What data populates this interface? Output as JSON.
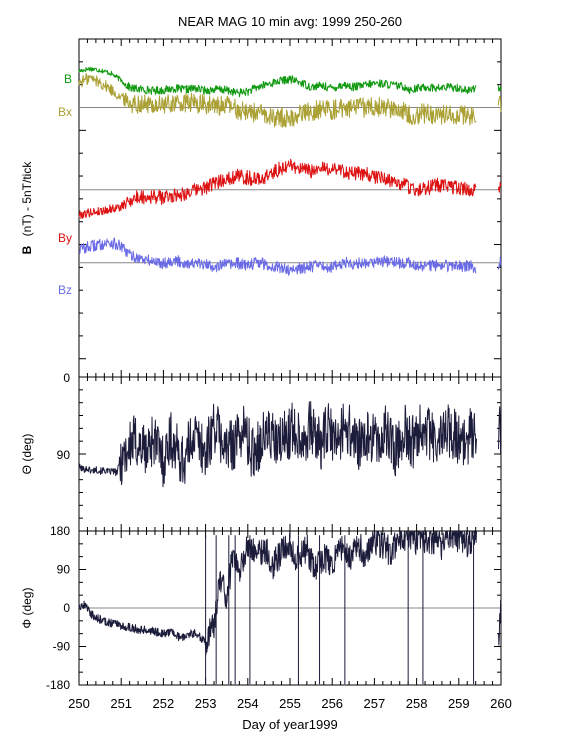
{
  "title": "NEAR MAG 10 min avg: 1999 250-260",
  "xlabel": "Day of year1999",
  "colors": {
    "B": "#119911",
    "Bx": "#aaa033",
    "By": "#dd1111",
    "Bz": "#6a6ae6",
    "theta": "#1b1b3a",
    "phi": "#1b1b3a",
    "zero_line": "#888888"
  },
  "chart_data": [
    {
      "type": "line",
      "panel": "magnetic-field",
      "ylabel_bold": "B",
      "ylabel_rest": "(nT) - 5nT/tick",
      "x_ticks": [
        "250",
        "251",
        "252",
        "253",
        "254",
        "255",
        "256",
        "257",
        "258",
        "259",
        "260"
      ],
      "xlim": [
        250,
        260
      ],
      "ylim": [
        -4,
        70
      ],
      "y_ticks": [
        "0"
      ],
      "series_note": "each trace drawn offset; offsets are the grey baselines",
      "series": [
        {
          "name": "B",
          "label": "B",
          "color_key": "B",
          "baseline": 55,
          "x": [
            250.0,
            250.25,
            250.5,
            250.75,
            251.0,
            251.1,
            251.25,
            251.5,
            251.75,
            252.0,
            252.25,
            252.5,
            252.75,
            253.0,
            253.25,
            253.5,
            253.75,
            254.0,
            254.25,
            254.5,
            254.75,
            255.0,
            255.25,
            255.5,
            255.75,
            256.0,
            256.25,
            256.5,
            256.75,
            257.0,
            257.25,
            257.5,
            257.75,
            257.85,
            258.0,
            258.25,
            258.5,
            258.75,
            259.0,
            259.25,
            259.4,
            259.95,
            260.0
          ],
          "y": [
            63,
            63.5,
            63.2,
            62.5,
            61,
            60,
            59.2,
            59,
            58.7,
            58.8,
            59.2,
            58.9,
            59.2,
            58.7,
            59,
            58.8,
            58.2,
            58.5,
            59.5,
            60.2,
            60.8,
            61.2,
            60.5,
            59.5,
            59.8,
            59.2,
            60,
            59.5,
            59.8,
            60.3,
            60.2,
            59.8,
            59.5,
            58.8,
            59.2,
            59.5,
            59.2,
            59.5,
            59.3,
            58.6,
            59.5,
            59.5,
            58.8
          ]
        },
        {
          "name": "Bx",
          "label": "Bx",
          "color_key": "Bx",
          "baseline": 55,
          "x": [
            250.0,
            250.25,
            250.5,
            250.75,
            251.0,
            251.1,
            251.25,
            251.5,
            251.75,
            252.0,
            252.25,
            252.5,
            252.75,
            253.0,
            253.25,
            253.5,
            253.75,
            254.0,
            254.25,
            254.5,
            254.75,
            255.0,
            255.25,
            255.5,
            255.75,
            256.0,
            256.25,
            256.5,
            256.75,
            257.0,
            257.25,
            257.5,
            257.75,
            257.85,
            258.0,
            258.25,
            258.5,
            258.75,
            259.0,
            259.25,
            259.4,
            259.95,
            260.0
          ],
          "y": [
            60.5,
            61.5,
            60.5,
            59,
            57.2,
            56.5,
            56,
            55.8,
            55.5,
            55.5,
            56,
            55.8,
            56,
            55.5,
            55.3,
            55.6,
            54.5,
            54.2,
            53.8,
            52.8,
            53,
            52.5,
            53.8,
            54.2,
            54.8,
            54.5,
            55,
            54.8,
            55,
            55.3,
            55,
            54.8,
            54.2,
            53.4,
            53.5,
            53.8,
            53.3,
            53.7,
            53.5,
            53.2,
            53.5,
            55.5,
            56
          ]
        },
        {
          "name": "By",
          "label": "By",
          "color_key": "By",
          "baseline": 37,
          "x": [
            250.0,
            250.25,
            250.5,
            250.75,
            251.0,
            251.1,
            251.25,
            251.5,
            251.75,
            252.0,
            252.25,
            252.5,
            252.75,
            253.0,
            253.25,
            253.5,
            253.75,
            254.0,
            254.25,
            254.5,
            254.75,
            255.0,
            255.25,
            255.5,
            255.75,
            256.0,
            256.25,
            256.5,
            256.75,
            257.0,
            257.25,
            257.5,
            257.75,
            257.85,
            258.0,
            258.25,
            258.5,
            258.75,
            259.0,
            259.25,
            259.4,
            259.95,
            260.0
          ],
          "y": [
            31.5,
            32,
            32.3,
            32.8,
            33.2,
            34,
            35,
            35.5,
            35.5,
            35.3,
            35.8,
            36.2,
            36.8,
            37.5,
            38.5,
            39.5,
            40,
            39.6,
            39.2,
            40.2,
            41.5,
            42.5,
            41.5,
            41,
            41.5,
            41.8,
            41.2,
            40.5,
            40.5,
            39.8,
            39.5,
            38.5,
            38,
            37.5,
            37,
            37.3,
            38,
            37.8,
            37.2,
            37,
            37.2,
            37.5,
            37.2
          ]
        },
        {
          "name": "Bz",
          "label": "Bz",
          "color_key": "Bz",
          "baseline": 21,
          "x": [
            250.0,
            250.25,
            250.5,
            250.75,
            251.0,
            251.1,
            251.25,
            251.5,
            251.75,
            252.0,
            252.25,
            252.5,
            252.75,
            253.0,
            253.25,
            253.5,
            253.75,
            254.0,
            254.25,
            254.5,
            254.75,
            255.0,
            255.25,
            255.5,
            255.75,
            256.0,
            256.25,
            256.5,
            256.75,
            257.0,
            257.25,
            257.5,
            257.75,
            257.85,
            258.0,
            258.25,
            258.5,
            258.75,
            259.0,
            259.25,
            259.4,
            259.95,
            260.0
          ],
          "y": [
            24,
            24.5,
            25,
            25.5,
            24.5,
            23.5,
            22.5,
            21.8,
            21.3,
            21,
            21.5,
            21,
            20.8,
            20.5,
            20.3,
            20.6,
            20.8,
            20.5,
            21.2,
            20.3,
            20,
            19.5,
            19.8,
            20.3,
            20.2,
            20,
            21,
            20.8,
            21,
            21.3,
            21.4,
            21,
            20.9,
            21,
            20.4,
            20.3,
            20.5,
            20.3,
            20.2,
            20.4,
            19.8,
            20.5,
            21.2
          ]
        }
      ]
    },
    {
      "type": "line",
      "panel": "theta",
      "ylabel": "Θ (deg)",
      "xlim": [
        250,
        260
      ],
      "ylim": [
        0,
        180
      ],
      "y_ticks": [
        "90"
      ],
      "series": [
        {
          "color_key": "theta",
          "x": [
            250.0,
            250.1,
            250.2,
            250.3,
            250.4,
            250.5,
            250.6,
            250.7,
            250.8,
            250.9,
            251.0,
            251.15,
            251.3,
            251.45,
            251.6,
            251.75,
            251.9,
            252.0,
            252.15,
            252.3,
            252.5,
            252.7,
            252.9,
            253.0,
            253.2,
            253.35,
            253.5,
            253.7,
            253.9,
            254.1,
            254.3,
            254.5,
            254.7,
            254.9,
            255.1,
            255.3,
            255.5,
            255.7,
            255.9,
            256.1,
            256.3,
            256.5,
            256.7,
            256.9,
            257.1,
            257.3,
            257.5,
            257.7,
            257.9,
            258.1,
            258.3,
            258.5,
            258.7,
            258.9,
            259.1,
            259.3,
            259.4,
            259.95,
            260.0
          ],
          "y": [
            75,
            72,
            73,
            70,
            72,
            70,
            71,
            69,
            70,
            68,
            85,
            95,
            105,
            100,
            92,
            110,
            95,
            80,
            110,
            95,
            80,
            115,
            100,
            90,
            125,
            110,
            95,
            105,
            120,
            90,
            105,
            115,
            98,
            112,
            120,
            108,
            122,
            100,
            118,
            104,
            125,
            110,
            95,
            115,
            100,
            118,
            92,
            120,
            103,
            128,
            112,
            100,
            120,
            115,
            95,
            118,
            112,
            110,
            125
          ]
        }
      ]
    },
    {
      "type": "line",
      "panel": "phi",
      "ylabel": "Φ (deg)",
      "xlim": [
        250,
        260
      ],
      "ylim": [
        -180,
        180
      ],
      "y_ticks": [
        "180",
        "90",
        "0",
        "-90",
        "-180"
      ],
      "series": [
        {
          "color_key": "phi",
          "x": [
            250.0,
            250.15,
            250.3,
            250.45,
            250.6,
            250.75,
            250.9,
            251.0,
            251.2,
            251.4,
            251.6,
            251.8,
            252.0,
            252.2,
            252.4,
            252.6,
            252.8,
            253.0,
            253.2,
            253.35,
            253.5,
            253.65,
            253.8,
            254.0,
            254.2,
            254.4,
            254.6,
            254.8,
            255.0,
            255.2,
            255.4,
            255.6,
            255.8,
            256.0,
            256.2,
            256.4,
            256.6,
            256.8,
            257.0,
            257.2,
            257.4,
            257.6,
            257.8,
            258.0,
            258.2,
            258.4,
            258.6,
            258.8,
            259.0,
            259.2,
            259.4,
            259.95,
            260.0
          ],
          "y": [
            5,
            8,
            -15,
            -25,
            -30,
            -35,
            -35,
            -42,
            -45,
            -50,
            -50,
            -55,
            -60,
            -55,
            -70,
            -60,
            -60,
            -80,
            -40,
            70,
            20,
            130,
            80,
            150,
            120,
            140,
            100,
            130,
            150,
            110,
            140,
            90,
            120,
            100,
            140,
            110,
            150,
            120,
            160,
            145,
            130,
            160,
            170,
            150,
            165,
            160,
            145,
            170,
            165,
            150,
            170,
            -60,
            10
          ]
        }
      ]
    }
  ]
}
